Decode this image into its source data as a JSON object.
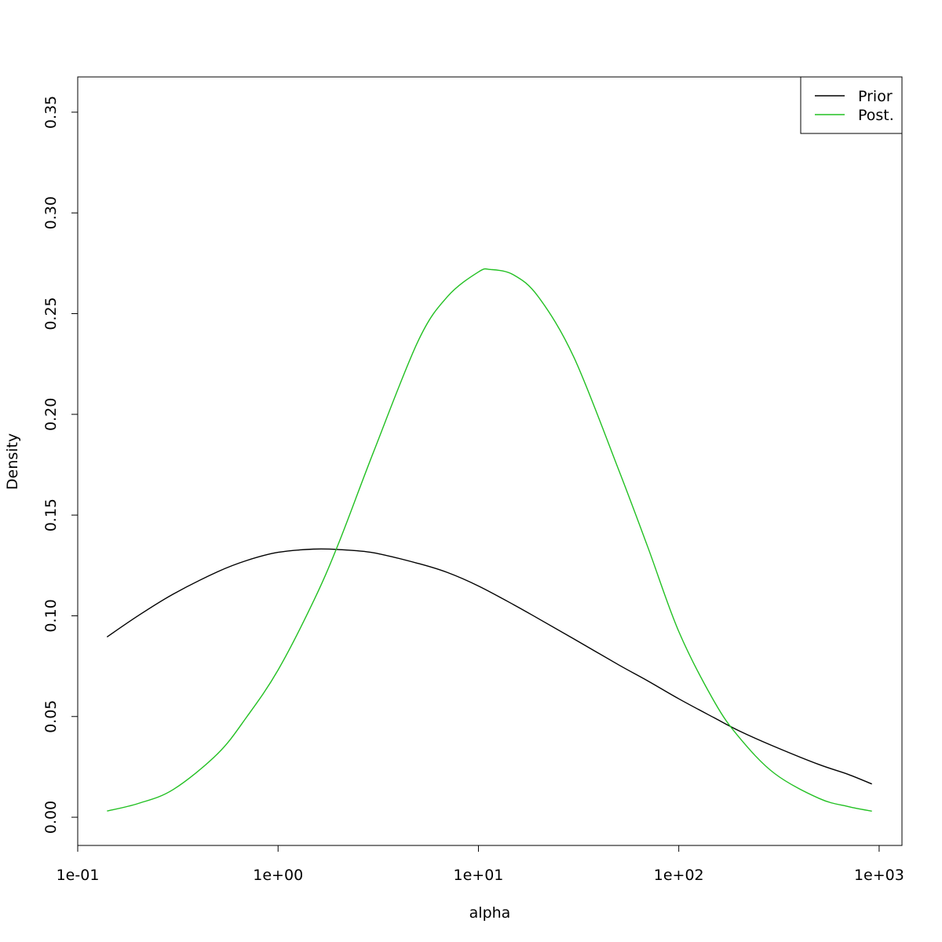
{
  "chart_data": {
    "type": "line",
    "xlabel": "alpha",
    "ylabel": "Density",
    "x_scale": "log",
    "xlim": [
      0.1,
      1300
    ],
    "ylim": [
      -0.014,
      0.3675
    ],
    "x_ticks": [
      0.1,
      1,
      10,
      100,
      1000
    ],
    "x_tick_labels": [
      "1e-01",
      "1e+00",
      "1e+01",
      "1e+02",
      "1e+03"
    ],
    "y_ticks": [
      0,
      0.05,
      0.1,
      0.15,
      0.2,
      0.25,
      0.3,
      0.35
    ],
    "y_tick_labels": [
      "0.00",
      "0.05",
      "0.10",
      "0.15",
      "0.20",
      "0.25",
      "0.30",
      "0.35"
    ],
    "legend_position": "top-right",
    "series": [
      {
        "name": "Prior",
        "color": "#000000",
        "x": [
          0.14,
          0.2,
          0.3,
          0.5,
          0.7,
          1.0,
          1.5,
          2.0,
          3.0,
          5.0,
          7.0,
          10.0,
          15.0,
          20.0,
          30.0,
          50.0,
          70.0,
          100.0,
          150.0,
          200.0,
          300.0,
          500.0,
          700.0,
          920.0
        ],
        "y": [
          0.0895,
          0.1,
          0.1108,
          0.1219,
          0.1275,
          0.1315,
          0.1331,
          0.1329,
          0.1313,
          0.126,
          0.1215,
          0.1148,
          0.1055,
          0.0985,
          0.0885,
          0.0757,
          0.0677,
          0.0588,
          0.0494,
          0.0429,
          0.0351,
          0.0262,
          0.0213,
          0.0165
        ]
      },
      {
        "name": "Post.",
        "color": "#22c022",
        "x": [
          0.14,
          0.2,
          0.3,
          0.5,
          0.7,
          1.0,
          1.5,
          2.0,
          3.0,
          5.0,
          7.0,
          10.0,
          11.5,
          15.0,
          20.0,
          30.0,
          50.0,
          70.0,
          100.0,
          150.0,
          200.0,
          300.0,
          500.0,
          700.0,
          920.0
        ],
        "y": [
          0.0031,
          0.0068,
          0.0138,
          0.0316,
          0.05,
          0.0731,
          0.1071,
          0.1357,
          0.1815,
          0.2364,
          0.2584,
          0.2707,
          0.2719,
          0.2692,
          0.2581,
          0.2282,
          0.1727,
          0.1342,
          0.0922,
          0.0576,
          0.0397,
          0.0218,
          0.0094,
          0.0053,
          0.003
        ]
      }
    ]
  }
}
